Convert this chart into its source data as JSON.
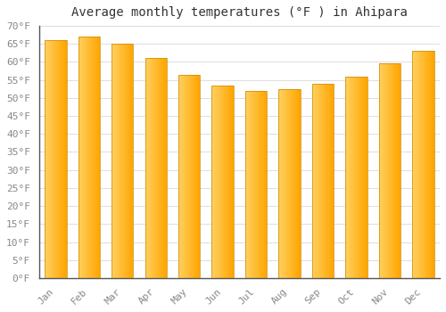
{
  "title": "Average monthly temperatures (°F ) in Ahipara",
  "months": [
    "Jan",
    "Feb",
    "Mar",
    "Apr",
    "May",
    "Jun",
    "Jul",
    "Aug",
    "Sep",
    "Oct",
    "Nov",
    "Dec"
  ],
  "values": [
    66,
    67,
    65,
    61,
    56.5,
    53.5,
    52,
    52.5,
    54,
    56,
    59.5,
    63
  ],
  "bar_color_left": "#FFD060",
  "bar_color_right": "#FFA500",
  "ylim": [
    0,
    70
  ],
  "yticks": [
    0,
    5,
    10,
    15,
    20,
    25,
    30,
    35,
    40,
    45,
    50,
    55,
    60,
    65,
    70
  ],
  "ytick_labels": [
    "0°F",
    "5°F",
    "10°F",
    "15°F",
    "20°F",
    "25°F",
    "30°F",
    "35°F",
    "40°F",
    "45°F",
    "50°F",
    "55°F",
    "60°F",
    "65°F",
    "70°F"
  ],
  "background_color": "#FFFFFF",
  "grid_color": "#DDDDDD",
  "title_fontsize": 10,
  "tick_fontsize": 8,
  "bar_width": 0.65
}
